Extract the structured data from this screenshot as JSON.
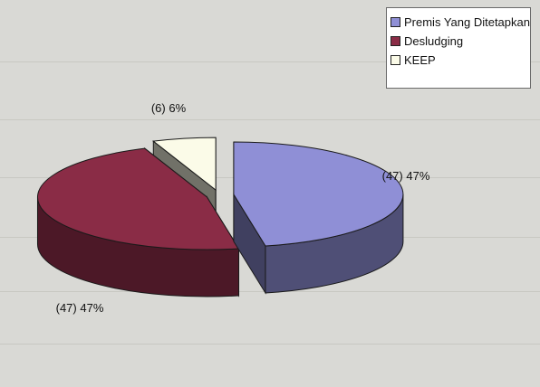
{
  "chart_data": {
    "type": "pie",
    "title": "",
    "slices": [
      {
        "name": "Premis Yang Ditetapkan",
        "count": 47,
        "percent": 47,
        "color": "#8f8fd6",
        "label": "(47) 47%"
      },
      {
        "name": "Desludging",
        "count": 47,
        "percent": 47,
        "color": "#8a2c46",
        "label": "(47) 47%"
      },
      {
        "name": "KEEP",
        "count": 6,
        "percent": 6,
        "color": "#fbfbe8",
        "label": "(6) 6%"
      }
    ],
    "legend_placement": "top-right",
    "style": "3d-exploded"
  }
}
